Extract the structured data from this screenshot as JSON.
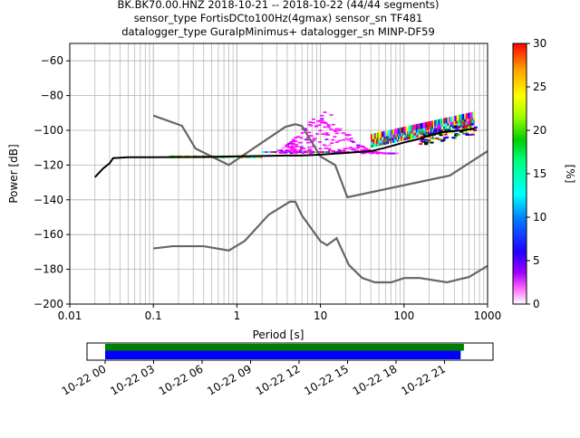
{
  "title_lines": [
    "BK.BK70.00.HNZ   2018-10-21 -- 2018-10-22  (44/44 segments)",
    "sensor_type FortisDCto100Hz(4gmax) sensor_sn TF481",
    "datalogger_type GuralpMinimus+ datalogger_sn MINP-DF59"
  ],
  "chart_data": {
    "type": "heatmap",
    "title": "BK.BK70.00.HNZ   2018-10-21 -- 2018-10-22  (44/44 segments)",
    "xlabel": "Period [s]",
    "ylabel": "Power [dB]",
    "x_scale": "log",
    "xlim": [
      0.01,
      1000
    ],
    "ylim": [
      -200,
      -50
    ],
    "grid": true,
    "x_ticks": [
      {
        "value": 0.01,
        "label": "0.01"
      },
      {
        "value": 0.1,
        "label": "0.1"
      },
      {
        "value": 1,
        "label": "1"
      },
      {
        "value": 10,
        "label": "10"
      },
      {
        "value": 100,
        "label": "100"
      },
      {
        "value": 1000,
        "label": "1000"
      }
    ],
    "y_ticks": [
      {
        "value": -60,
        "label": "−60"
      },
      {
        "value": -80,
        "label": "−80"
      },
      {
        "value": -100,
        "label": "−100"
      },
      {
        "value": -120,
        "label": "−120"
      },
      {
        "value": -140,
        "label": "−140"
      },
      {
        "value": -160,
        "label": "−160"
      },
      {
        "value": -180,
        "label": "−180"
      },
      {
        "value": -200,
        "label": "−200"
      }
    ],
    "colorbar": {
      "label": "[%]",
      "range": [
        0,
        30
      ],
      "ticks": [
        {
          "value": 0,
          "label": "0"
        },
        {
          "value": 5,
          "label": "5"
        },
        {
          "value": 10,
          "label": "10"
        },
        {
          "value": 15,
          "label": "15"
        },
        {
          "value": 20,
          "label": "20"
        },
        {
          "value": 25,
          "label": "25"
        },
        {
          "value": 30,
          "label": "30"
        }
      ],
      "colors": [
        "#ffffff",
        "#ff00ff",
        "#8000ff",
        "#0000ff",
        "#0080ff",
        "#00ffff",
        "#00ff80",
        "#00c000",
        "#80ff00",
        "#ffff00",
        "#ffa000",
        "#ff0000"
      ]
    },
    "mode_line": [
      [
        0.02,
        -127
      ],
      [
        0.025,
        -122
      ],
      [
        0.03,
        -119
      ],
      [
        0.033,
        -116
      ],
      [
        0.05,
        -115.5
      ],
      [
        0.1,
        -115.5
      ],
      [
        0.5,
        -115.3
      ],
      [
        1,
        -115
      ],
      [
        2,
        -114.8
      ],
      [
        4,
        -114.5
      ],
      [
        6,
        -114.5
      ],
      [
        10,
        -114
      ],
      [
        20,
        -113
      ],
      [
        40,
        -112
      ],
      [
        60,
        -110
      ],
      [
        100,
        -107
      ],
      [
        150,
        -105
      ],
      [
        200,
        -103
      ],
      [
        300,
        -101
      ],
      [
        500,
        -100
      ],
      [
        700,
        -99
      ]
    ],
    "noise_models": [
      {
        "points": [
          [
            0.1,
            -91.5
          ],
          [
            0.22,
            -97.4
          ],
          [
            0.32,
            -110.5
          ],
          [
            0.8,
            -120
          ],
          [
            3.8,
            -98
          ],
          [
            5,
            -96.5
          ],
          [
            6,
            -97.5
          ],
          [
            10,
            -115
          ],
          [
            15,
            -120
          ],
          [
            21,
            -138.5
          ],
          [
            354,
            -126
          ],
          [
            1000,
            -112
          ]
        ]
      },
      {
        "points": [
          [
            0.1,
            -168
          ],
          [
            0.17,
            -166.7
          ],
          [
            0.4,
            -166.7
          ],
          [
            0.8,
            -169.2
          ],
          [
            1.24,
            -163.7
          ],
          [
            2.4,
            -148.6
          ],
          [
            4.3,
            -141.1
          ],
          [
            5,
            -141.1
          ],
          [
            6,
            -149
          ],
          [
            10,
            -163.8
          ],
          [
            12,
            -166.2
          ],
          [
            15.6,
            -162.1
          ],
          [
            21.9,
            -177.5
          ],
          [
            31.6,
            -185
          ],
          [
            45,
            -187.5
          ],
          [
            70,
            -187.5
          ],
          [
            101,
            -185
          ],
          [
            154,
            -185
          ],
          [
            328,
            -187.5
          ],
          [
            600,
            -184.4
          ],
          [
            1000,
            -178
          ]
        ]
      }
    ],
    "pdf_cells": [
      {
        "x": [
          2.0,
          40.0
        ],
        "y_min": -113,
        "y_max": -112,
        "colors": [
          "#ff00ff",
          "#8000ff",
          "#0000ff",
          "#00ffff",
          "#00c000",
          "#ffff00",
          "#ff0000"
        ]
      },
      {
        "x": [
          0.15,
          2.0
        ],
        "y_min": -116,
        "y_max": -114.5,
        "colors": [
          "#00ffff",
          "#00c000",
          "#ffff00",
          "#ffa000",
          "#ff0000"
        ]
      },
      {
        "x": [
          40.0,
          700.0
        ],
        "y_min": -110,
        "y_max": -97,
        "colors": [
          "#ff00ff",
          "#0000ff",
          "#00ffff",
          "#00c000",
          "#ffff00",
          "#ff0000"
        ]
      }
    ],
    "excursion_region": {
      "x": [
        3.0,
        80.0
      ],
      "y_top": -89,
      "y_bottom": -113
    },
    "timeline": {
      "tick_labels": [
        "10-22 00",
        "10-22 03",
        "10-22 06",
        "10-22 09",
        "10-22 12",
        "10-22 15",
        "10-22 18",
        "10-22 21"
      ],
      "hours_span": [
        0,
        24
      ],
      "bars": [
        {
          "color": "#008000",
          "start_hour": 0,
          "end_hour": 22.2
        },
        {
          "color": "#0000ff",
          "start_hour": 0,
          "end_hour": 22.0
        }
      ]
    }
  }
}
